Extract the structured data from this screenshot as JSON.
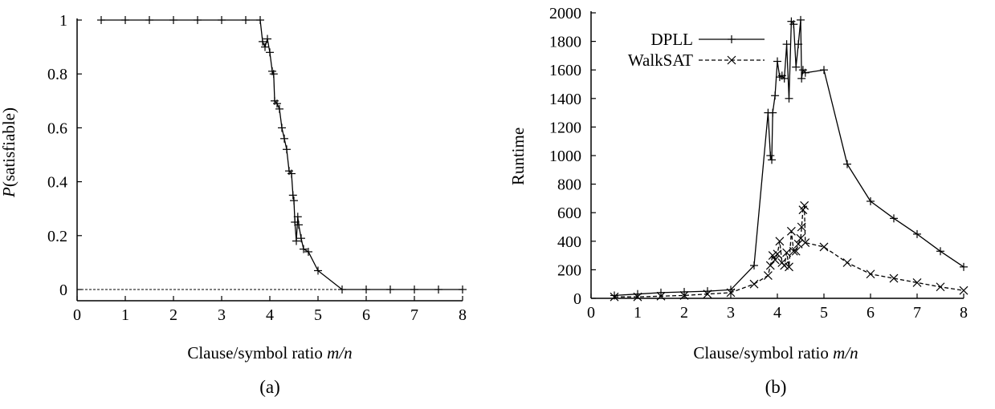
{
  "chart_data": [
    {
      "id": "a",
      "type": "line",
      "caption": "(a)",
      "xlabel_prefix": "Clause/symbol ratio ",
      "xlabel_var": "m/n",
      "ylabel_var": "P",
      "ylabel_rest": "(satisfiable)",
      "xlim": [
        0,
        8
      ],
      "ylim": [
        0,
        1
      ],
      "xticks": [
        "0",
        "1",
        "2",
        "3",
        "4",
        "5",
        "6",
        "7",
        "8"
      ],
      "yticks": [
        "0",
        "0.2",
        "0.4",
        "0.6",
        "0.8",
        "1"
      ],
      "reference_line": 0,
      "series": [
        {
          "marker": "plus",
          "style": "solid",
          "points": [
            [
              0.5,
              1
            ],
            [
              1.0,
              1
            ],
            [
              1.5,
              1
            ],
            [
              2.0,
              1
            ],
            [
              2.5,
              1
            ],
            [
              3.0,
              1
            ],
            [
              3.5,
              1
            ],
            [
              3.8,
              1
            ],
            [
              3.85,
              0.92
            ],
            [
              3.9,
              0.9
            ],
            [
              3.95,
              0.93
            ],
            [
              4.0,
              0.88
            ],
            [
              4.05,
              0.81
            ],
            [
              4.08,
              0.8
            ],
            [
              4.1,
              0.7
            ],
            [
              4.15,
              0.69
            ],
            [
              4.2,
              0.67
            ],
            [
              4.25,
              0.6
            ],
            [
              4.3,
              0.56
            ],
            [
              4.35,
              0.52
            ],
            [
              4.4,
              0.44
            ],
            [
              4.45,
              0.43
            ],
            [
              4.48,
              0.35
            ],
            [
              4.5,
              0.33
            ],
            [
              4.52,
              0.25
            ],
            [
              4.55,
              0.18
            ],
            [
              4.58,
              0.27
            ],
            [
              4.6,
              0.24
            ],
            [
              4.65,
              0.19
            ],
            [
              4.7,
              0.15
            ],
            [
              4.8,
              0.14
            ],
            [
              5.0,
              0.07
            ],
            [
              5.5,
              0
            ],
            [
              6.0,
              0
            ],
            [
              6.5,
              0
            ],
            [
              7.0,
              0
            ],
            [
              7.5,
              0
            ],
            [
              8.0,
              0
            ]
          ]
        }
      ]
    },
    {
      "id": "b",
      "type": "line",
      "caption": "(b)",
      "xlabel_prefix": "Clause/symbol ratio ",
      "xlabel_var": "m/n",
      "ylabel": "Runtime",
      "xlim": [
        0,
        8
      ],
      "ylim": [
        0,
        2000
      ],
      "xticks": [
        "0",
        "1",
        "2",
        "3",
        "4",
        "5",
        "6",
        "7",
        "8"
      ],
      "yticks": [
        "0",
        "200",
        "400",
        "600",
        "800",
        "1000",
        "1200",
        "1400",
        "1600",
        "1800",
        "2000"
      ],
      "legend_position": "top-left",
      "series": [
        {
          "name": "DPLL",
          "marker": "plus",
          "style": "solid",
          "points": [
            [
              0.5,
              20
            ],
            [
              1.0,
              30
            ],
            [
              1.5,
              40
            ],
            [
              2.0,
              45
            ],
            [
              2.5,
              50
            ],
            [
              3.0,
              60
            ],
            [
              3.5,
              230
            ],
            [
              3.8,
              1300
            ],
            [
              3.85,
              1000
            ],
            [
              3.88,
              970
            ],
            [
              3.9,
              1300
            ],
            [
              3.95,
              1420
            ],
            [
              4.0,
              1660
            ],
            [
              4.05,
              1550
            ],
            [
              4.1,
              1560
            ],
            [
              4.15,
              1540
            ],
            [
              4.2,
              1780
            ],
            [
              4.25,
              1400
            ],
            [
              4.3,
              1940
            ],
            [
              4.35,
              1920
            ],
            [
              4.4,
              1620
            ],
            [
              4.45,
              1780
            ],
            [
              4.5,
              1950
            ],
            [
              4.52,
              1540
            ],
            [
              4.55,
              1600
            ],
            [
              4.6,
              1580
            ],
            [
              5.0,
              1600
            ],
            [
              5.5,
              940
            ],
            [
              6.0,
              680
            ],
            [
              6.5,
              560
            ],
            [
              7.0,
              450
            ],
            [
              7.5,
              330
            ],
            [
              8.0,
              220
            ]
          ]
        },
        {
          "name": "WalkSAT",
          "marker": "x",
          "style": "dashed",
          "points": [
            [
              0.5,
              10
            ],
            [
              1.0,
              10
            ],
            [
              1.5,
              15
            ],
            [
              2.0,
              20
            ],
            [
              2.5,
              30
            ],
            [
              3.0,
              40
            ],
            [
              3.5,
              100
            ],
            [
              3.8,
              160
            ],
            [
              3.85,
              230
            ],
            [
              3.9,
              300
            ],
            [
              3.95,
              270
            ],
            [
              4.0,
              310
            ],
            [
              4.05,
              400
            ],
            [
              4.1,
              250
            ],
            [
              4.15,
              230
            ],
            [
              4.2,
              320
            ],
            [
              4.25,
              220
            ],
            [
              4.3,
              470
            ],
            [
              4.35,
              330
            ],
            [
              4.4,
              330
            ],
            [
              4.45,
              380
            ],
            [
              4.5,
              420
            ],
            [
              4.52,
              500
            ],
            [
              4.55,
              620
            ],
            [
              4.58,
              650
            ],
            [
              4.6,
              390
            ],
            [
              5.0,
              360
            ],
            [
              5.5,
              250
            ],
            [
              6.0,
              170
            ],
            [
              6.5,
              140
            ],
            [
              7.0,
              110
            ],
            [
              7.5,
              80
            ],
            [
              8.0,
              55
            ]
          ]
        }
      ]
    }
  ]
}
